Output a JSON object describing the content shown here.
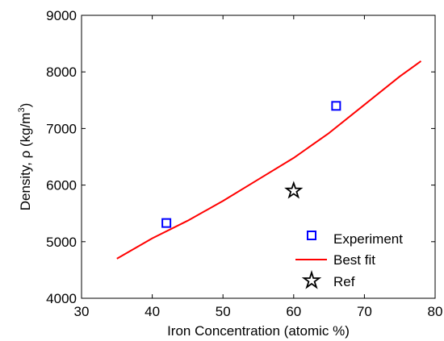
{
  "chart_data": {
    "type": "scatter",
    "title": "",
    "xlabel": "Iron Concentration (atomic %)",
    "ylabel_parts": {
      "main": "Density, ",
      "symbol": "ρ",
      "unit_open": " (kg/m",
      "unit_sup": "3",
      "unit_close": ")"
    },
    "xlim": [
      30,
      80
    ],
    "ylim": [
      4000,
      9000
    ],
    "xticks": [
      30,
      40,
      50,
      60,
      70,
      80
    ],
    "yticks": [
      4000,
      5000,
      6000,
      7000,
      8000,
      9000
    ],
    "grid": false,
    "legend_position": "bottom-right",
    "series": [
      {
        "name": "Experiment",
        "kind": "scatter",
        "marker": "square",
        "color": "#0000ff",
        "x": [
          42,
          66
        ],
        "y": [
          5330,
          7400
        ]
      },
      {
        "name": "Best fit",
        "kind": "line",
        "color": "#ff0000",
        "x": [
          35,
          40,
          45,
          50,
          55,
          60,
          65,
          70,
          75,
          78
        ],
        "y": [
          4700,
          5060,
          5370,
          5720,
          6100,
          6480,
          6920,
          7420,
          7920,
          8190
        ]
      },
      {
        "name": "Ref",
        "kind": "scatter",
        "marker": "star",
        "color": "#000000",
        "x": [
          60
        ],
        "y": [
          5900
        ]
      }
    ]
  }
}
